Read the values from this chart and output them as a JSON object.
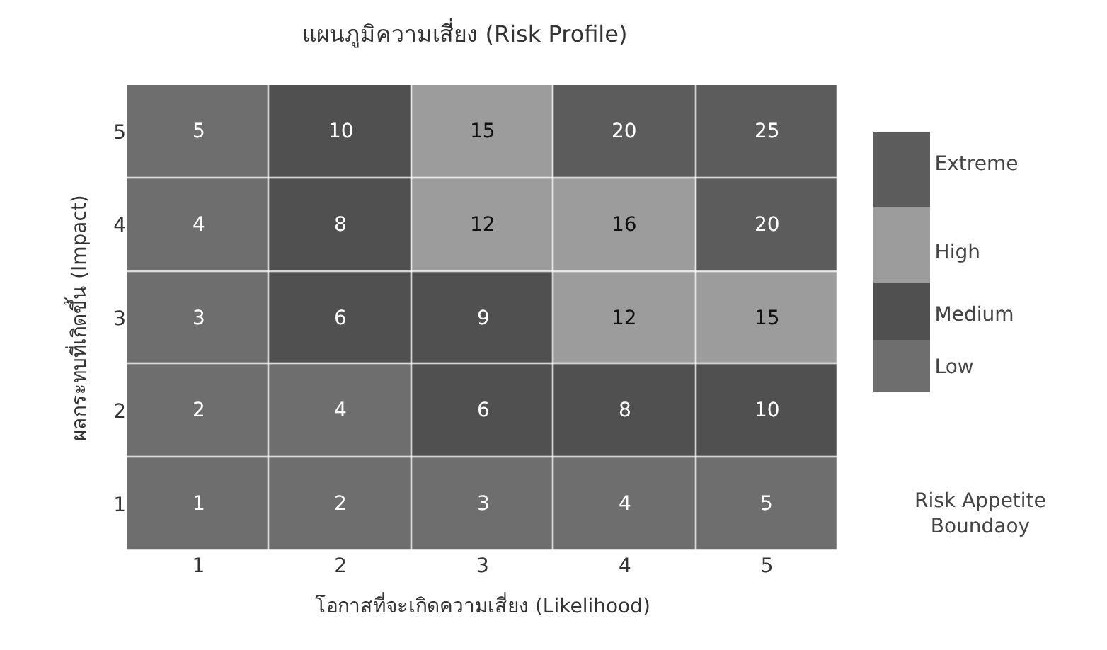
{
  "chart_data": {
    "type": "heatmap",
    "title": "แผนภูมิความเสี่ยง (Risk Profile)",
    "xlabel": "โอกาสที่จะเกิดความเสี่ยง (Likelihood)",
    "ylabel": "ผลกระทบที่เกิดขึ้น (Impact)",
    "categories": [
      "1",
      "2",
      "3",
      "4",
      "5"
    ],
    "y_categories": [
      "5",
      "4",
      "3",
      "2",
      "1"
    ],
    "cells": [
      [
        5,
        10,
        15,
        20,
        25
      ],
      [
        4,
        8,
        12,
        16,
        20
      ],
      [
        3,
        6,
        9,
        12,
        15
      ],
      [
        2,
        4,
        6,
        8,
        10
      ],
      [
        1,
        2,
        3,
        4,
        5
      ]
    ],
    "data_labels": true,
    "colors": [
      "#6e6e6e",
      "#505050",
      "#9c9c9c",
      "#5c5c5c"
    ],
    "clim": [
      0.5,
      25.5
    ],
    "cticks": [
      {
        "value": 3,
        "label": "Low"
      },
      {
        "value": 8,
        "label": "Medium"
      },
      {
        "value": 14,
        "label": "High"
      },
      {
        "value": 22.5,
        "label": "Extreme"
      }
    ],
    "annotations": [
      "Risk Appetite\nBoundaoy"
    ]
  }
}
